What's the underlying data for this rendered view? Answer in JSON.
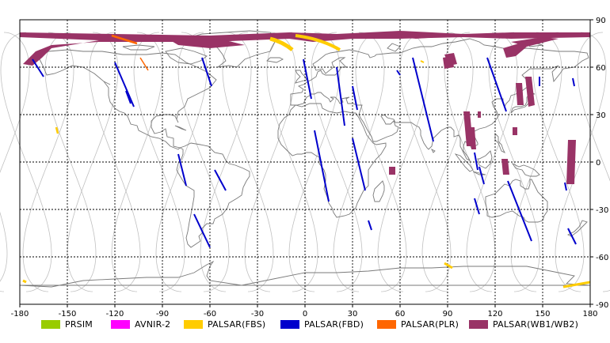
{
  "map": {
    "lon_range": [
      -180,
      180
    ],
    "lat_range": [
      -90,
      90
    ],
    "x_ticks": [
      "-180",
      "-150",
      "-120",
      "-90",
      "-60",
      "-30",
      "0",
      "30",
      "60",
      "90",
      "120",
      "150",
      "180"
    ],
    "y_ticks": [
      "90",
      "60",
      "30",
      "0",
      "-30",
      "-60",
      "-90"
    ],
    "grid_color": "#000000",
    "orbit_color": "#c0c0c0",
    "coast_color": "#7a7a7a"
  },
  "legend": [
    {
      "key": "prism",
      "label": "PRSIM",
      "color": "#99cc00"
    },
    {
      "key": "avnir",
      "label": "AVNIR-2",
      "color": "#ff00ff"
    },
    {
      "key": "fbs",
      "label": "PALSAR(FBS)",
      "color": "#ffcc00"
    },
    {
      "key": "fbd",
      "label": "PALSAR(FBD)",
      "color": "#0000cc"
    },
    {
      "key": "plr",
      "label": "PALSAR(PLR)",
      "color": "#ff6600"
    },
    {
      "key": "wb",
      "label": "PALSAR(WB1/WB2)",
      "color": "#993366"
    }
  ]
}
